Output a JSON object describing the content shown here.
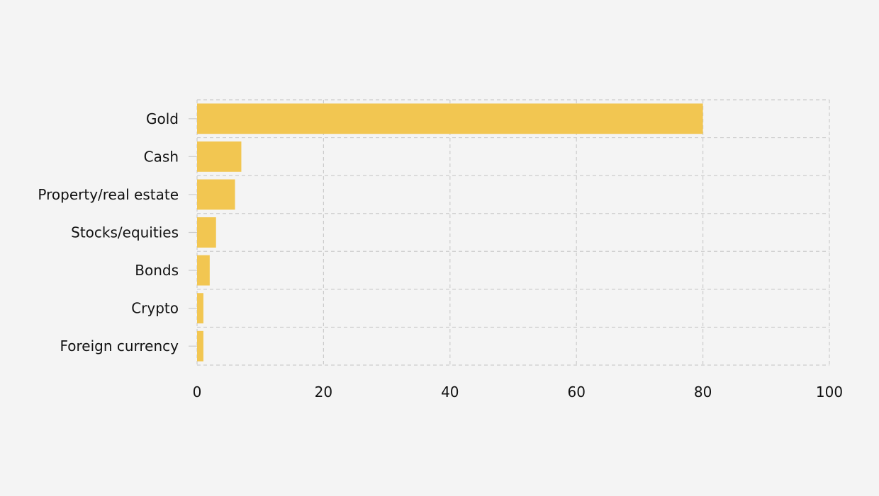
{
  "chart_data": {
    "type": "bar",
    "orientation": "horizontal",
    "categories": [
      "Gold",
      "Cash",
      "Property/real estate",
      "Stocks/equities",
      "Bonds",
      "Crypto",
      "Foreign currency"
    ],
    "values": [
      80,
      7,
      6,
      3,
      2,
      1,
      1
    ],
    "title": "",
    "xlabel": "",
    "ylabel": "",
    "xlim": [
      0,
      100
    ],
    "xticks": [
      0,
      20,
      40,
      60,
      80,
      100
    ],
    "grid": true,
    "bar_color": "#f2c651",
    "grid_color": "#cccccc",
    "background": "#f4f4f4"
  }
}
